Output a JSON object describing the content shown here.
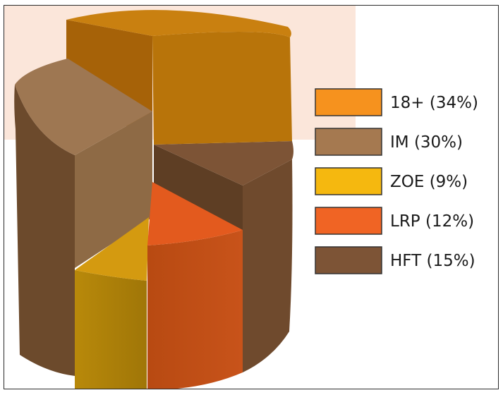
{
  "chart_data": {
    "type": "pie",
    "style": "3d-exploded-cylinder",
    "title": "",
    "categories": [
      "18+",
      "IM",
      "ZOE",
      "LRP",
      "HFT"
    ],
    "values": [
      34,
      30,
      9,
      12,
      15
    ],
    "legend_labels": [
      "18+ (34%)",
      "IM (30%)",
      "ZOE (9%)",
      "LRP (12%)",
      "HFT (15%)"
    ],
    "colors": [
      "#F6921E",
      "#A57950",
      "#F5B80F",
      "#F06424",
      "#7D5436"
    ],
    "legend_position": "right",
    "background_band_color": "#FBE6DA"
  }
}
